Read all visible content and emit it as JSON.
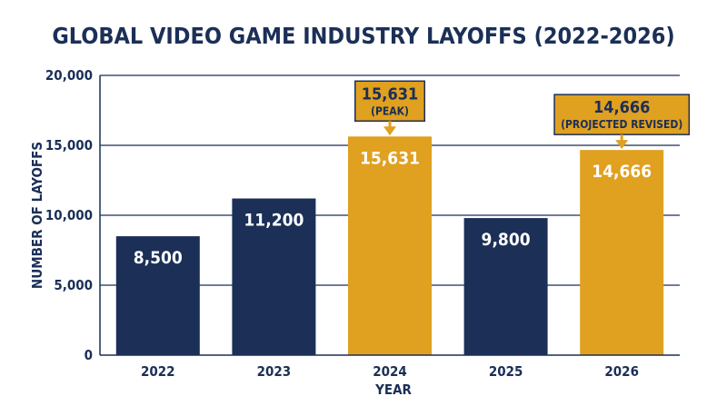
{
  "chart_data": {
    "type": "bar",
    "title": "GLOBAL VIDEO GAME INDUSTRY LAYOFFS (2022-2026)",
    "xlabel": "YEAR",
    "ylabel": "NUMBER OF LAYOFFS",
    "categories": [
      "2022",
      "2023",
      "2024",
      "2025",
      "2026"
    ],
    "values": [
      8500,
      11200,
      15631,
      9800,
      14666
    ],
    "value_labels": [
      "8,500",
      "11,200",
      "15,631",
      "9,800",
      "14,666"
    ],
    "ylim": [
      0,
      20000
    ],
    "yticks": [
      0,
      5000,
      10000,
      15000,
      20000
    ],
    "ytick_labels": [
      "0",
      "5,000",
      "10,000",
      "15,000",
      "20,000"
    ],
    "grid": true,
    "legend": "none",
    "highlighted": [
      2,
      4
    ],
    "annotations": [
      {
        "category": "2024",
        "value_text": "15,631",
        "note": "(PEAK)"
      },
      {
        "category": "2026",
        "value_text": "14,666",
        "note": "(PROJECTED REVISED)"
      }
    ]
  },
  "colors": {
    "base_bar": "#1b2f57",
    "highlight_bar": "#e0a020",
    "text": "#1b2f57",
    "grid": "#1b2f57"
  }
}
